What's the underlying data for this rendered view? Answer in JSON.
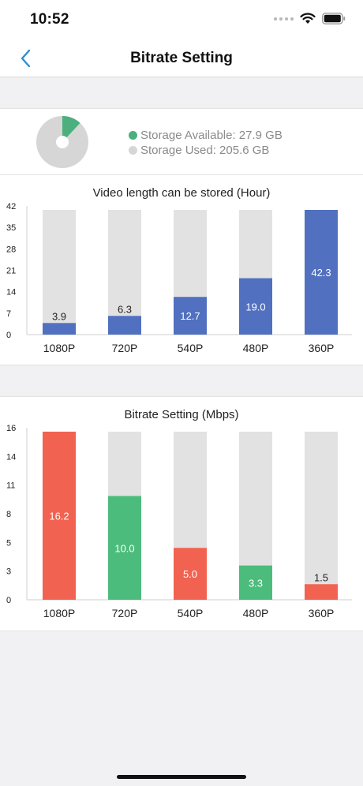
{
  "status_bar": {
    "time": "10:52"
  },
  "nav": {
    "title": "Bitrate Setting"
  },
  "storage": {
    "available_label": "Storage Available: 27.9 GB",
    "used_label": "Storage Used: 205.6 GB",
    "available_gb": 27.9,
    "used_gb": 205.6,
    "available_color": "#4caf7d",
    "used_color": "#d6d6d6"
  },
  "chart_data": [
    {
      "type": "bar",
      "title": "Video length can be stored (Hour)",
      "categories": [
        "1080P",
        "720P",
        "540P",
        "480P",
        "360P"
      ],
      "values": [
        3.9,
        6.3,
        12.7,
        19.0,
        42.3
      ],
      "value_labels": [
        "3.9",
        "6.3",
        "12.7",
        "19.0",
        "42.3"
      ],
      "yticks": [
        "0",
        "7",
        "14",
        "21",
        "28",
        "35",
        "42"
      ],
      "ylim": [
        0,
        42
      ],
      "bar_colors": [
        "#5170c0",
        "#5170c0",
        "#5170c0",
        "#5170c0",
        "#5170c0"
      ],
      "background_color": "#e2e2e2",
      "grid": false
    },
    {
      "type": "bar",
      "title": "Bitrate Setting (Mbps)",
      "categories": [
        "1080P",
        "720P",
        "540P",
        "480P",
        "360P"
      ],
      "values": [
        16.2,
        10.0,
        5.0,
        3.3,
        1.5
      ],
      "value_labels": [
        "16.2",
        "10.0",
        "5.0",
        "3.3",
        "1.5"
      ],
      "yticks": [
        "0",
        "3",
        "5",
        "8",
        "11",
        "14",
        "16"
      ],
      "ylim": [
        0,
        16.2
      ],
      "bar_colors": [
        "#f26250",
        "#4cbc7c",
        "#f26250",
        "#4cbc7c",
        "#f26250"
      ],
      "background_color": "#e2e2e2",
      "grid": false
    }
  ]
}
